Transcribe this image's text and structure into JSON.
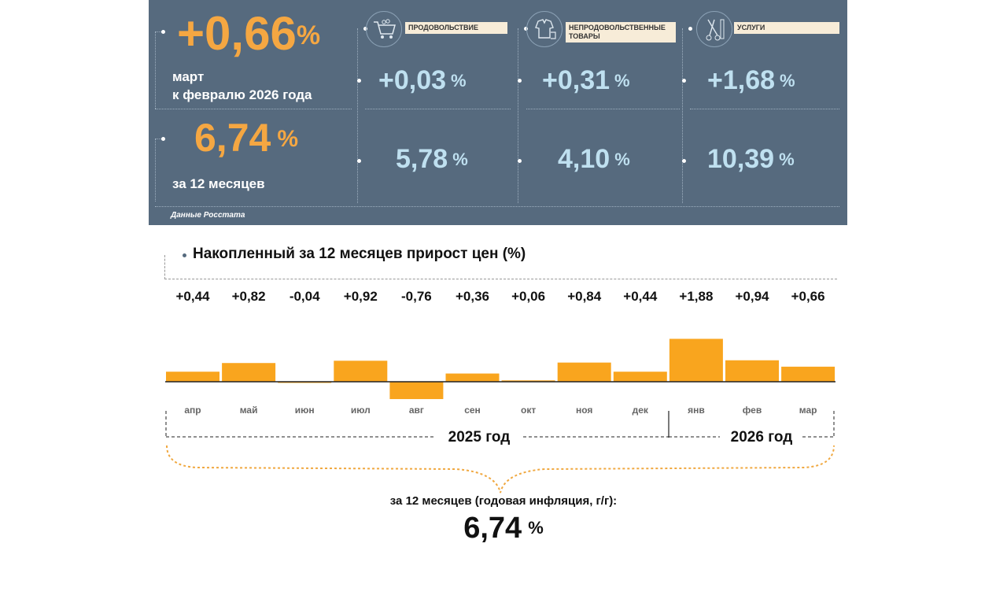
{
  "panel": {
    "main_value": "+0,66",
    "pct": "%",
    "main_caption_line1": "март",
    "main_caption_line2": "к февралю 2026 года",
    "annual_value": "6,74",
    "annual_caption": "за 12 месяцев",
    "source": "Данные Росстата",
    "categories": [
      {
        "label": "ПРОДОВОЛЬСТВИЕ",
        "icon": "shopping-cart-icon",
        "monthly": "+0,03",
        "annual": "5,78"
      },
      {
        "label_line1": "НЕПРОДОВОЛЬСТВЕННЫЕ",
        "label_line2": "ТОВАРЫ",
        "icon": "clothes-icon",
        "monthly": "+0,31",
        "annual": "4,10"
      },
      {
        "label": "УСЛУГИ",
        "icon": "scissors-comb-icon",
        "monthly": "+1,68",
        "annual": "10,39"
      }
    ]
  },
  "chart_title": "Накопленный за 12 месяцев прирост цен (%)",
  "chart_data": {
    "type": "bar",
    "title": "Накопленный за 12 месяцев прирост цен (%)",
    "categories": [
      "апр",
      "май",
      "июн",
      "июл",
      "авг",
      "сен",
      "окт",
      "ноя",
      "дек",
      "янв",
      "фев",
      "мар"
    ],
    "value_labels": [
      "+0,44",
      "+0,82",
      "-0,04",
      "+0,92",
      "-0,76",
      "+0,36",
      "+0,06",
      "+0,84",
      "+0,44",
      "+1,88",
      "+0,94",
      "+0,66"
    ],
    "values": [
      0.44,
      0.82,
      -0.04,
      0.92,
      -0.76,
      0.36,
      0.06,
      0.84,
      0.44,
      1.88,
      0.94,
      0.66
    ],
    "year_labels": [
      "2025 год",
      "2026 год"
    ],
    "color": "#f9a51e",
    "ylim": [
      -0.76,
      1.88
    ],
    "grid": false
  },
  "footer": {
    "caption": "за 12 месяцев (годовая инфляция, г/г):",
    "value": "6,74",
    "pct": "%"
  },
  "colors": {
    "panel_bg": "#566a7e",
    "orange": "#f5a742",
    "light_blue": "#bfe0f0",
    "bar": "#f9a51e"
  }
}
